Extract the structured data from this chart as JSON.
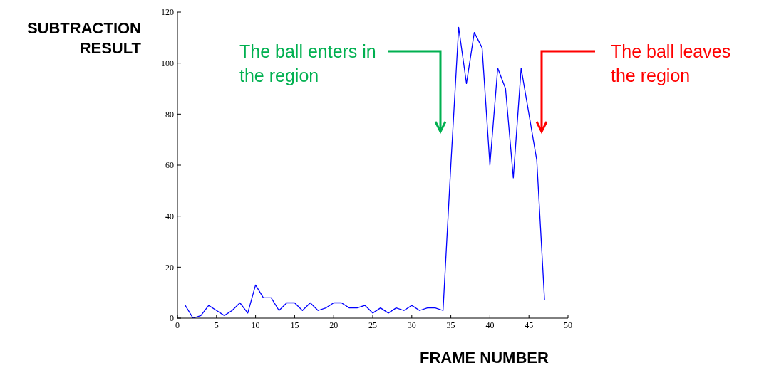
{
  "chart_data": {
    "type": "line",
    "xlabel": "FRAME NUMBER",
    "ylabel": "SUBTRACTION RESULT",
    "x": [
      1,
      2,
      3,
      4,
      5,
      6,
      7,
      8,
      9,
      10,
      11,
      12,
      13,
      14,
      15,
      16,
      17,
      18,
      19,
      20,
      21,
      22,
      23,
      24,
      25,
      26,
      27,
      28,
      29,
      30,
      31,
      32,
      33,
      34,
      35,
      36,
      37,
      38,
      39,
      40,
      41,
      42,
      43,
      44,
      45,
      46,
      47
    ],
    "series": [
      {
        "color": "#0000ff",
        "values": [
          5,
          0,
          1,
          5,
          3,
          1,
          3,
          6,
          2,
          13,
          8,
          8,
          3,
          6,
          6,
          3,
          6,
          3,
          4,
          6,
          6,
          4,
          4,
          5,
          2,
          4,
          2,
          4,
          3,
          5,
          3,
          4,
          4,
          3,
          60,
          114,
          92,
          112,
          106,
          60,
          98,
          90,
          55,
          98,
          80,
          62,
          7
        ]
      }
    ],
    "xlim": [
      0,
      50
    ],
    "xticks": [
      0,
      5,
      10,
      15,
      20,
      25,
      30,
      35,
      40,
      45,
      50
    ],
    "ylim": [
      0,
      120
    ],
    "yticks": [
      0,
      20,
      40,
      60,
      80,
      100,
      120
    ],
    "grid": false,
    "legend": false,
    "marker": "none",
    "line_style": "solid",
    "annotations": [
      "The ball enters in the region",
      "The ball leaves the region"
    ]
  }
}
